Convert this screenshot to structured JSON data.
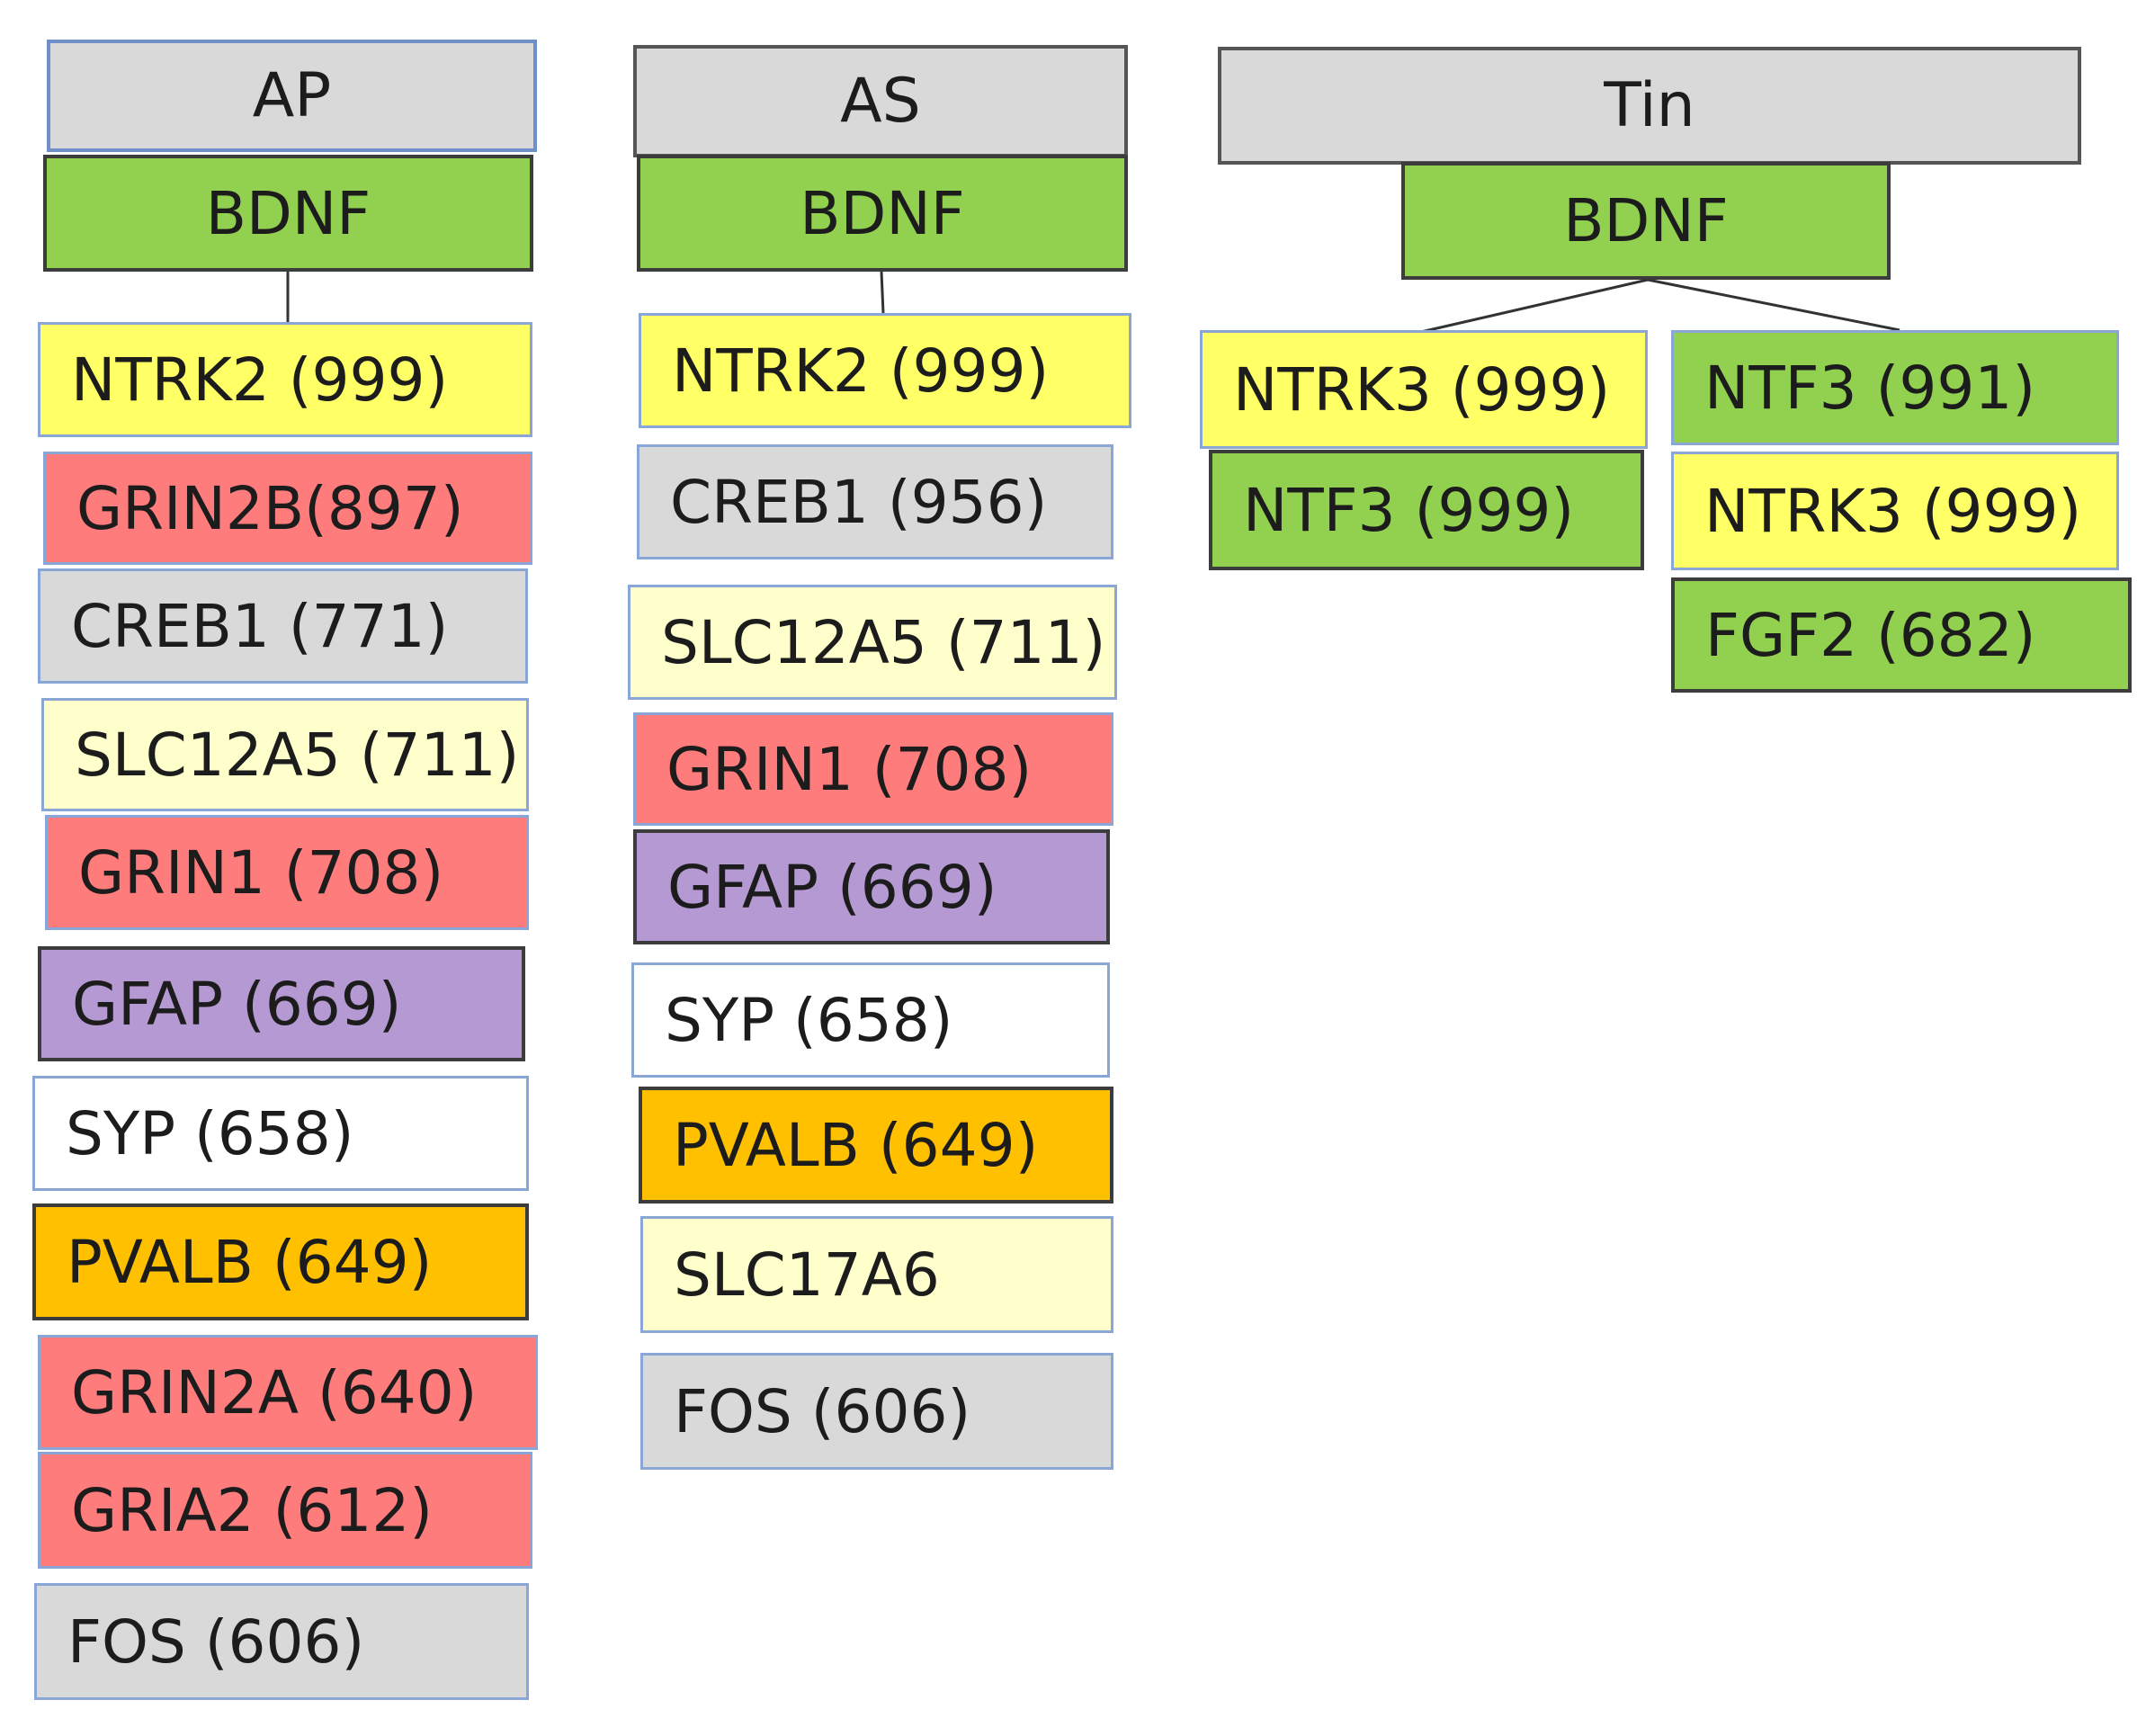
{
  "colors": {
    "header": "#d9d9d9",
    "green": "#92d050",
    "yellow": "#ffff66",
    "pale_yellow": "#ffffcc",
    "red": "#ff7c7c",
    "gray": "#d9d9d9",
    "purple": "#b499d2",
    "white": "#ffffff",
    "orange": "#ffc000"
  },
  "columns": {
    "ap": {
      "header": "AP",
      "root": "BDNF",
      "items": [
        {
          "label": "NTRK2 (999)",
          "color": "#ffff66"
        },
        {
          "label": "GRIN2B(897)",
          "color": "#ff7c7c"
        },
        {
          "label": "CREB1 (771)",
          "color": "#d9d9d9"
        },
        {
          "label": "SLC12A5 (711)",
          "color": "#ffffcc"
        },
        {
          "label": "GRIN1 (708)",
          "color": "#ff7c7c"
        },
        {
          "label": "GFAP (669)",
          "color": "#b499d2"
        },
        {
          "label": "SYP (658)",
          "color": "#ffffff"
        },
        {
          "label": "PVALB (649)",
          "color": "#ffc000"
        },
        {
          "label": "GRIN2A (640)",
          "color": "#ff7c7c"
        },
        {
          "label": "GRIA2 (612)",
          "color": "#ff7c7c"
        },
        {
          "label": "FOS (606)",
          "color": "#d9d9d9"
        }
      ]
    },
    "as": {
      "header": "AS",
      "root": "BDNF",
      "items": [
        {
          "label": "NTRK2 (999)",
          "color": "#ffff66"
        },
        {
          "label": "CREB1 (956)",
          "color": "#d9d9d9"
        },
        {
          "label": "SLC12A5 (711)",
          "color": "#ffffcc"
        },
        {
          "label": "GRIN1 (708)",
          "color": "#ff7c7c"
        },
        {
          "label": "GFAP (669)",
          "color": "#b499d2"
        },
        {
          "label": "SYP (658)",
          "color": "#ffffff"
        },
        {
          "label": "PVALB (649)",
          "color": "#ffc000"
        },
        {
          "label": "SLC17A6",
          "color": "#ffffcc"
        },
        {
          "label": "FOS (606)",
          "color": "#d9d9d9"
        }
      ]
    },
    "tin": {
      "header": "Tin",
      "root": "BDNF",
      "left_branch": [
        {
          "label": "NTRK3 (999)",
          "color": "#ffff66"
        },
        {
          "label": "NTF3 (999)",
          "color": "#92d050"
        }
      ],
      "right_branch": [
        {
          "label": "NTF3 (991)",
          "color": "#92d050"
        },
        {
          "label": "NTRK3 (999)",
          "color": "#ffff66"
        },
        {
          "label": "FGF2 (682)",
          "color": "#92d050"
        }
      ]
    }
  }
}
